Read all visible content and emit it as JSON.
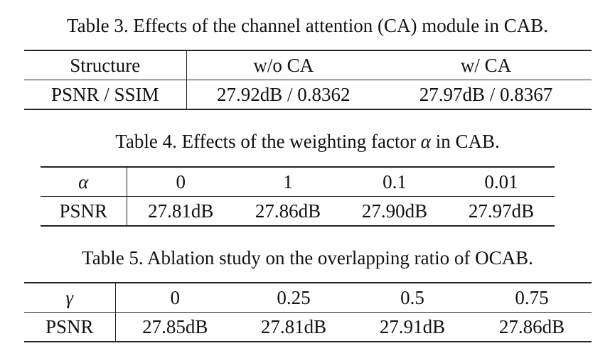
{
  "table3": {
    "caption": "Table 3. Effects of the channel attention (CA) module in CAB.",
    "header": [
      "Structure",
      "w/o CA",
      "w/ CA"
    ],
    "row_label": "PSNR / SSIM",
    "values": [
      "27.92dB / 0.8362",
      "27.97dB / 0.8367"
    ]
  },
  "table4": {
    "caption_pre": "Table 4. Effects of the weighting factor ",
    "caption_sym": "α",
    "caption_post": " in CAB.",
    "header_label": "α",
    "header": [
      "0",
      "1",
      "0.1",
      "0.01"
    ],
    "row_label": "PSNR",
    "values": [
      "27.81dB",
      "27.86dB",
      "27.90dB",
      "27.97dB"
    ]
  },
  "table5": {
    "caption": "Table 5. Ablation study on the overlapping ratio of OCAB.",
    "header_label": "γ",
    "header": [
      "0",
      "0.25",
      "0.5",
      "0.75"
    ],
    "row_label": "PSNR",
    "values": [
      "27.85dB",
      "27.81dB",
      "27.91dB",
      "27.86dB"
    ]
  }
}
